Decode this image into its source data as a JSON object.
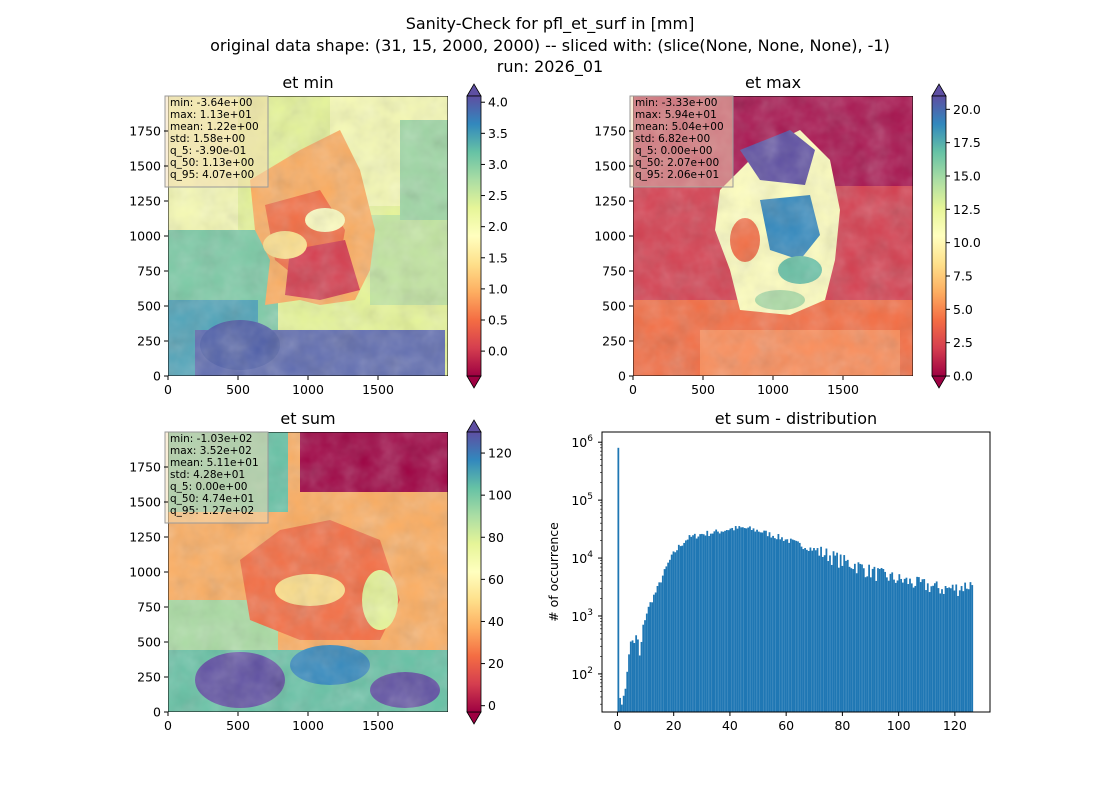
{
  "figure": {
    "suptitle_lines": [
      "Sanity-Check for pfl_et_surf in [mm]",
      "original data shape: (31, 15, 2000, 2000) -- sliced with: (slice(None, None, None), -1)",
      "run: 2026_01"
    ]
  },
  "colors": {
    "histogram_bar": "#1f77b4",
    "stats_box_bg": "#f5deb3",
    "colormap": "Spectral",
    "colormap_stops": [
      "#9e0142",
      "#d53e4f",
      "#f46d43",
      "#fdae61",
      "#fee08b",
      "#ffffbf",
      "#e6f598",
      "#abdda4",
      "#66c2a5",
      "#3288bd",
      "#5e4fa2"
    ]
  },
  "chart_data": [
    {
      "type": "heatmap",
      "title": "et min",
      "colormap": "Spectral",
      "xlim": [
        0,
        2000
      ],
      "ylim": [
        0,
        2000
      ],
      "x_ticks": [
        0,
        500,
        1000,
        1500
      ],
      "y_ticks": [
        0,
        250,
        500,
        750,
        1000,
        1250,
        1500,
        1750
      ],
      "colorbar": {
        "range": [
          -0.4,
          4.1
        ],
        "ticks": [
          "0.0",
          "0.5",
          "1.0",
          "1.5",
          "2.0",
          "2.5",
          "3.0",
          "3.5",
          "4.0"
        ],
        "extend": "both"
      },
      "stats": [
        "min: -3.64e+00",
        "max: 1.13e+01",
        "mean: 1.22e+00",
        "std: 1.58e+00",
        "q_5: -3.90e-01",
        "q_50: 1.13e+00",
        "q_95: 4.07e+00"
      ]
    },
    {
      "type": "heatmap",
      "title": "et max",
      "colormap": "Spectral",
      "xlim": [
        0,
        2000
      ],
      "ylim": [
        0,
        2000
      ],
      "x_ticks": [
        0,
        500,
        1000,
        1500
      ],
      "y_ticks": [
        0,
        250,
        500,
        750,
        1000,
        1250,
        1500,
        1750
      ],
      "colorbar": {
        "range": [
          0,
          21
        ],
        "ticks": [
          "0.0",
          "2.5",
          "5.0",
          "7.5",
          "10.0",
          "12.5",
          "15.0",
          "17.5",
          "20.0"
        ],
        "extend": "both"
      },
      "stats": [
        "min: -3.33e+00",
        "max: 5.94e+01",
        "mean: 5.04e+00",
        "std: 6.82e+00",
        "q_5: 0.00e+00",
        "q_50: 2.07e+00",
        "q_95: 2.06e+01"
      ]
    },
    {
      "type": "heatmap",
      "title": "et sum",
      "colormap": "Spectral",
      "xlim": [
        0,
        2000
      ],
      "ylim": [
        0,
        2000
      ],
      "x_ticks": [
        0,
        500,
        1000,
        1500
      ],
      "y_ticks": [
        0,
        250,
        500,
        750,
        1000,
        1250,
        1500,
        1750
      ],
      "colorbar": {
        "range": [
          -3,
          130
        ],
        "ticks": [
          "0",
          "20",
          "40",
          "60",
          "80",
          "100",
          "120"
        ],
        "extend": "both"
      },
      "stats": [
        "min: -1.03e+02",
        "max: 3.52e+02",
        "mean: 5.11e+01",
        "std: 4.28e+01",
        "q_5: 0.00e+00",
        "q_50: 4.74e+01",
        "q_95: 1.27e+02"
      ]
    },
    {
      "type": "bar",
      "title": "et sum - distribution",
      "xlabel": "",
      "ylabel": "# of occurrence",
      "y_scale": "log",
      "xlim": [
        -5.5,
        132.5
      ],
      "ylim": [
        22,
        1500000
      ],
      "x_ticks": [
        0,
        20,
        40,
        60,
        80,
        100,
        120
      ],
      "y_ticks": [
        {
          "value": 100,
          "mantissa": "10",
          "exp": "2"
        },
        {
          "value": 1000,
          "mantissa": "10",
          "exp": "3"
        },
        {
          "value": 10000,
          "mantissa": "10",
          "exp": "4"
        },
        {
          "value": 100000,
          "mantissa": "10",
          "exp": "5"
        },
        {
          "value": 1000000,
          "mantissa": "10",
          "exp": "6"
        }
      ],
      "bin_range": [
        0,
        126.5
      ],
      "bin_count": 200,
      "profile": [
        [
          0.0,
          800000
        ],
        [
          0.6,
          800000
        ],
        [
          0.65,
          45
        ],
        [
          1.3,
          32
        ],
        [
          2.5,
          40
        ],
        [
          3.5,
          120
        ],
        [
          5,
          450
        ],
        [
          6,
          320
        ],
        [
          7,
          520
        ],
        [
          8,
          180
        ],
        [
          9,
          600
        ],
        [
          10,
          1000
        ],
        [
          12,
          1800
        ],
        [
          14,
          2800
        ],
        [
          16,
          4800
        ],
        [
          18,
          8000
        ],
        [
          20,
          12000
        ],
        [
          22,
          16000
        ],
        [
          25,
          22000
        ],
        [
          30,
          26000
        ],
        [
          35,
          28000
        ],
        [
          40,
          32000
        ],
        [
          45,
          33000
        ],
        [
          50,
          30000
        ],
        [
          55,
          25000
        ],
        [
          60,
          21000
        ],
        [
          65,
          17000
        ],
        [
          70,
          14000
        ],
        [
          75,
          11500
        ],
        [
          80,
          9000
        ],
        [
          85,
          7500
        ],
        [
          90,
          6000
        ],
        [
          95,
          5000
        ],
        [
          100,
          4300
        ],
        [
          105,
          3800
        ],
        [
          110,
          3400
        ],
        [
          115,
          3000
        ],
        [
          120,
          3000
        ],
        [
          126.5,
          3600
        ]
      ]
    }
  ]
}
